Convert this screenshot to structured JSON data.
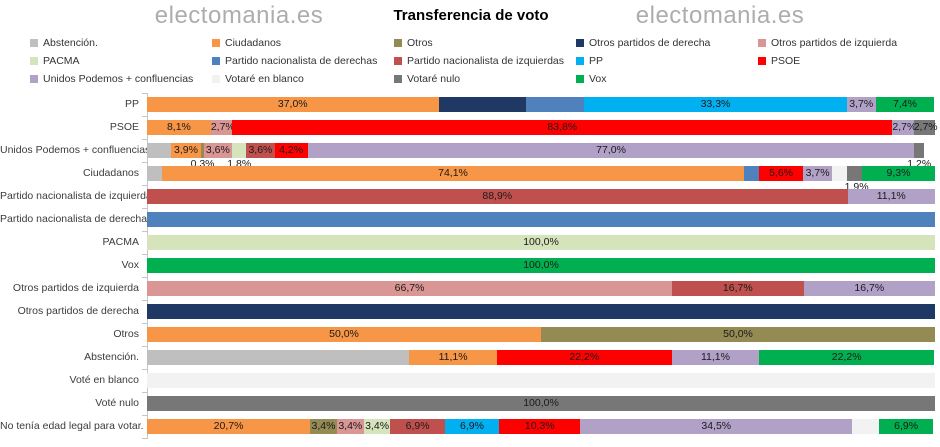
{
  "header": {
    "watermark_left": "electomania.es",
    "watermark_right": "electomania.es"
  },
  "chart_data": {
    "type": "bar",
    "orientation": "horizontal",
    "stacked": true,
    "units": "%",
    "title": "Transferencia de voto",
    "value_range": [
      0,
      100
    ],
    "legend_position": "top",
    "grid": false,
    "parties": {
      "abstencion": {
        "label": "Abstención.",
        "color": "#BFBFBF"
      },
      "ciudadanos": {
        "label": "Ciudadanos",
        "color": "#F79646"
      },
      "otros": {
        "label": "Otros",
        "color": "#948A54"
      },
      "otros_derecha": {
        "label": "Otros partidos de derecha",
        "color": "#1F3864"
      },
      "otros_izquierda": {
        "label": "Otros partidos de izquierda",
        "color": "#D99694"
      },
      "pacma": {
        "label": "PACMA",
        "color": "#D6E4BC"
      },
      "pn_derechas": {
        "label": "Partido nacionalista de derechas",
        "color": "#4F81BD"
      },
      "pn_izquierdas": {
        "label": "Partido nacionalista de izquierdas",
        "color": "#C0504D"
      },
      "pp": {
        "label": "PP",
        "color": "#00B0F0"
      },
      "psoe": {
        "label": "PSOE",
        "color": "#FF0000"
      },
      "up": {
        "label": "Unidos Podemos + confluencias",
        "color": "#B2A1C7"
      },
      "votare_blanco": {
        "label": "Votaré en blanco",
        "color": "#F2F2F2"
      },
      "votare_nulo": {
        "label": "Votaré nulo",
        "color": "#777777"
      },
      "vox": {
        "label": "Vox",
        "color": "#00B050"
      }
    },
    "legend_columns": [
      [
        "abstencion",
        "pacma",
        "up"
      ],
      [
        "ciudadanos",
        "pn_derechas",
        "votare_blanco"
      ],
      [
        "otros",
        "pn_izquierdas",
        "votare_nulo"
      ],
      [
        "otros_derecha",
        "pp",
        "vox"
      ],
      [
        "otros_izquierda",
        "psoe"
      ]
    ],
    "rows": [
      {
        "category": "PP",
        "segments": [
          {
            "party": "ciudadanos",
            "value": 37.0,
            "label": "37,0%"
          },
          {
            "party": "otros_derecha",
            "value": 11.1,
            "label": ""
          },
          {
            "party": "pn_derechas",
            "value": 7.4,
            "label": ""
          },
          {
            "party": "pp",
            "value": 33.3,
            "label": "33,3%"
          },
          {
            "party": "up",
            "value": 3.7,
            "label": "3,7%"
          },
          {
            "party": "vox",
            "value": 7.4,
            "label": "7,4%"
          }
        ]
      },
      {
        "category": "PSOE",
        "segments": [
          {
            "party": "ciudadanos",
            "value": 8.1,
            "label": "8,1%"
          },
          {
            "party": "otros_izquierda",
            "value": 2.7,
            "label": "2,7%"
          },
          {
            "party": "psoe",
            "value": 83.8,
            "label": "83,8%"
          },
          {
            "party": "up",
            "value": 2.7,
            "label": "2,7%"
          },
          {
            "party": "votare_nulo",
            "value": 2.7,
            "label": "2,7%"
          }
        ]
      },
      {
        "category": "Unidos Podemos + confluencias",
        "segments": [
          {
            "party": "abstencion",
            "value": 3.0,
            "label": ""
          },
          {
            "party": "ciudadanos",
            "value": 3.9,
            "label": "3,9%"
          },
          {
            "party": "otros",
            "value": 0.3,
            "label": "0,3%",
            "label_below": true
          },
          {
            "party": "otros_izquierda",
            "value": 3.6,
            "label": "3,6%"
          },
          {
            "party": "pacma",
            "value": 1.8,
            "label": "1,8%",
            "label_below": true
          },
          {
            "party": "pn_izquierdas",
            "value": 3.6,
            "label": "3,6%"
          },
          {
            "party": "psoe",
            "value": 4.2,
            "label": "4,2%"
          },
          {
            "party": "up",
            "value": 77.0,
            "label": "77,0%"
          },
          {
            "party": "votare_nulo",
            "value": 1.2,
            "label": "1,2%",
            "label_below": true
          }
        ]
      },
      {
        "category": "Ciudadanos",
        "segments": [
          {
            "party": "abstencion",
            "value": 1.9,
            "label": ""
          },
          {
            "party": "ciudadanos",
            "value": 74.1,
            "label": "74,1%"
          },
          {
            "party": "pn_derechas",
            "value": 1.9,
            "label": ""
          },
          {
            "party": "psoe",
            "value": 5.6,
            "label": "5,6%"
          },
          {
            "party": "up",
            "value": 3.7,
            "label": "3,7%"
          },
          {
            "party": "votare_blanco",
            "value": 1.9,
            "label": ""
          },
          {
            "party": "votare_nulo",
            "value": 1.9,
            "label": "1,9%",
            "label_below": true
          },
          {
            "party": "vox",
            "value": 9.3,
            "label": "9,3%"
          }
        ]
      },
      {
        "category": "Partido nacionalista de izquierdas",
        "segments": [
          {
            "party": "pn_izquierdas",
            "value": 88.9,
            "label": "88,9%"
          },
          {
            "party": "up",
            "value": 11.1,
            "label": "11,1%"
          }
        ]
      },
      {
        "category": "Partido nacionalista de derechas",
        "segments": [
          {
            "party": "pn_derechas",
            "value": 100.0,
            "label": ""
          }
        ]
      },
      {
        "category": "PACMA",
        "segments": [
          {
            "party": "pacma",
            "value": 100.0,
            "label": "100,0%"
          }
        ]
      },
      {
        "category": "Vox",
        "segments": [
          {
            "party": "vox",
            "value": 100.0,
            "label": "100,0%"
          }
        ]
      },
      {
        "category": "Otros partidos de izquierda",
        "segments": [
          {
            "party": "otros_izquierda",
            "value": 66.7,
            "label": "66,7%"
          },
          {
            "party": "pn_izquierdas",
            "value": 16.7,
            "label": "16,7%"
          },
          {
            "party": "up",
            "value": 16.7,
            "label": "16,7%"
          }
        ]
      },
      {
        "category": "Otros partidos de derecha",
        "segments": [
          {
            "party": "otros_derecha",
            "value": 100.0,
            "label": ""
          }
        ]
      },
      {
        "category": "Otros",
        "segments": [
          {
            "party": "ciudadanos",
            "value": 50.0,
            "label": "50,0%"
          },
          {
            "party": "otros",
            "value": 50.0,
            "label": "50,0%"
          }
        ]
      },
      {
        "category": "Abstención.",
        "segments": [
          {
            "party": "abstencion",
            "value": 33.3,
            "label": ""
          },
          {
            "party": "ciudadanos",
            "value": 11.1,
            "label": "11,1%"
          },
          {
            "party": "psoe",
            "value": 22.2,
            "label": "22,2%"
          },
          {
            "party": "up",
            "value": 11.1,
            "label": "11,1%"
          },
          {
            "party": "vox",
            "value": 22.2,
            "label": "22,2%"
          }
        ]
      },
      {
        "category": "Voté en blanco",
        "segments": [
          {
            "party": "votare_blanco",
            "value": 100.0,
            "label": ""
          }
        ]
      },
      {
        "category": "Voté nulo",
        "segments": [
          {
            "party": "votare_nulo",
            "value": 100.0,
            "label": "100,0%"
          }
        ]
      },
      {
        "category": "No tenía edad legal para votar.",
        "segments": [
          {
            "party": "ciudadanos",
            "value": 20.7,
            "label": "20,7%"
          },
          {
            "party": "otros",
            "value": 3.4,
            "label": "3,4%"
          },
          {
            "party": "otros_izquierda",
            "value": 3.4,
            "label": "3,4%"
          },
          {
            "party": "pacma",
            "value": 3.4,
            "label": "3,4%"
          },
          {
            "party": "pn_izquierdas",
            "value": 6.9,
            "label": "6,9%"
          },
          {
            "party": "pp",
            "value": 6.9,
            "label": "6,9%"
          },
          {
            "party": "psoe",
            "value": 10.3,
            "label": "10,3%"
          },
          {
            "party": "up",
            "value": 34.5,
            "label": "34,5%"
          },
          {
            "party": "votare_blanco",
            "value": 3.4,
            "label": ""
          },
          {
            "party": "vox",
            "value": 6.9,
            "label": "6,9%"
          }
        ]
      }
    ]
  }
}
